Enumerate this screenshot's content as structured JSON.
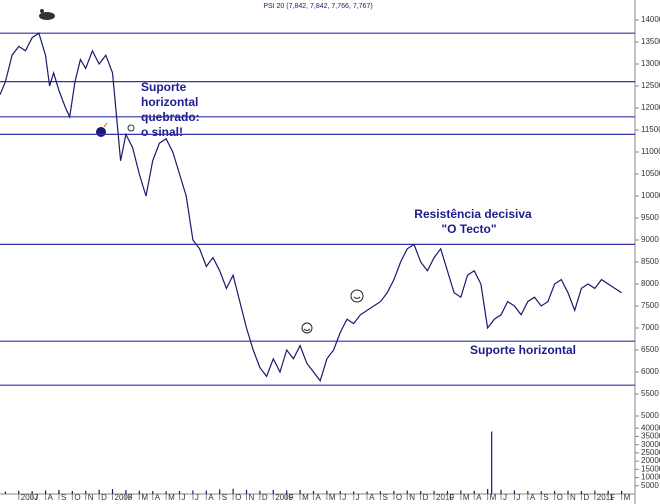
{
  "chart_data": [
    {
      "type": "line",
      "title": "PSI 20 (7,842, 7,842, 7,766, 7,767)",
      "annotations": [
        "Suporte",
        "horizontal",
        "quebrado:",
        "o sinal!",
        "Resistência decisiva",
        "\"O Tecto\"",
        "Suporte horizontal"
      ],
      "xlim": [
        3.6,
        51
      ],
      "ylim": [
        5000,
        14000
      ],
      "yticks": [
        5000,
        5500,
        6000,
        6500,
        7000,
        7500,
        8000,
        8500,
        9000,
        9500,
        10000,
        10500,
        11000,
        11500,
        12000,
        12500,
        13000,
        13500,
        14000
      ],
      "hlines": [
        13700,
        12600,
        11800,
        11400,
        8900,
        6700,
        5700
      ],
      "hline_color": "#3333aa",
      "series": [
        {
          "name": "PSI 20",
          "color": "#1a1a6e",
          "x": [
            3.6,
            4.0,
            4.5,
            5.0,
            5.5,
            6.0,
            6.5,
            7.0,
            7.3,
            7.6,
            8.0,
            8.5,
            8.8,
            9.2,
            9.6,
            10.0,
            10.5,
            11.0,
            11.5,
            12.0,
            12.3,
            12.6,
            13.0,
            13.5,
            14.0,
            14.5,
            15.0,
            15.5,
            16.0,
            16.5,
            17.0,
            17.5,
            18.0,
            18.5,
            19.0,
            19.5,
            20.0,
            20.5,
            21.0,
            21.5,
            22.0,
            22.5,
            23.0,
            23.5,
            24.0,
            24.5,
            25.0,
            25.5,
            26.0,
            26.5,
            27.0,
            27.5,
            28.0,
            28.5,
            29.0,
            29.5,
            30.0,
            30.5,
            31.0,
            32.0,
            32.5,
            33.0,
            33.5,
            34.0,
            34.5,
            35.0,
            35.5,
            36.0,
            36.5,
            37.0,
            37.5,
            38.0,
            38.5,
            39.0,
            39.5,
            40.0,
            40.5,
            41.0,
            41.5,
            42.0,
            42.5,
            43.0,
            43.5,
            44.0,
            44.5,
            45.0,
            45.5,
            46.0,
            46.5,
            47.0,
            47.5,
            48.0,
            48.5,
            49.0,
            49.5,
            50.0
          ],
          "values": [
            12300,
            12600,
            13200,
            13400,
            13300,
            13600,
            13700,
            13200,
            12500,
            12800,
            12400,
            12000,
            11800,
            12600,
            13100,
            12900,
            13300,
            13000,
            13200,
            12800,
            11800,
            10800,
            11400,
            11100,
            10500,
            10000,
            10800,
            11200,
            11300,
            11000,
            10500,
            10000,
            9000,
            8800,
            8400,
            8600,
            8300,
            7900,
            8200,
            7600,
            7000,
            6500,
            6100,
            5900,
            6300,
            6000,
            6500,
            6300,
            6600,
            6200,
            6000,
            5800,
            6300,
            6500,
            6900,
            7200,
            7100,
            7300,
            7400,
            7600,
            7800,
            8100,
            8500,
            8800,
            8900,
            8500,
            8300,
            8600,
            8800,
            8300,
            7800,
            7700,
            8200,
            8300,
            8000,
            7000,
            7200,
            7300,
            7600,
            7500,
            7300,
            7600,
            7700,
            7500,
            7600,
            8000,
            8100,
            7800,
            7400,
            7900,
            8000,
            7900,
            8100,
            8000,
            7900,
            7800
          ]
        }
      ]
    },
    {
      "type": "bar",
      "color": "#1a1a6e",
      "xlim": [
        3.6,
        51
      ],
      "ylim": [
        0,
        45000
      ],
      "yticks": [
        5000,
        10000,
        15000,
        20000,
        25000,
        30000,
        35000,
        40000
      ],
      "xticks": [
        {
          "value": 5,
          "label": "2007"
        },
        {
          "value": 6,
          "label": "J"
        },
        {
          "value": 7,
          "label": "A"
        },
        {
          "value": 8,
          "label": "S"
        },
        {
          "value": 9,
          "label": "O"
        },
        {
          "value": 10,
          "label": "N"
        },
        {
          "value": 11,
          "label": "D"
        },
        {
          "value": 12,
          "label": "2008"
        },
        {
          "value": 13,
          "label": "F"
        },
        {
          "value": 14,
          "label": "M"
        },
        {
          "value": 15,
          "label": "A"
        },
        {
          "value": 16,
          "label": "M"
        },
        {
          "value": 17,
          "label": "J"
        },
        {
          "value": 18,
          "label": "J"
        },
        {
          "value": 19,
          "label": "A"
        },
        {
          "value": 20,
          "label": "S"
        },
        {
          "value": 21,
          "label": "O"
        },
        {
          "value": 22,
          "label": "N"
        },
        {
          "value": 23,
          "label": "D"
        },
        {
          "value": 24,
          "label": "2009"
        },
        {
          "value": 25,
          "label": "F"
        },
        {
          "value": 26,
          "label": "M"
        },
        {
          "value": 27,
          "label": "A"
        },
        {
          "value": 28,
          "label": "M"
        },
        {
          "value": 29,
          "label": "J"
        },
        {
          "value": 30,
          "label": "J"
        },
        {
          "value": 31,
          "label": "A"
        },
        {
          "value": 32,
          "label": "S"
        },
        {
          "value": 33,
          "label": "O"
        },
        {
          "value": 34,
          "label": "N"
        },
        {
          "value": 35,
          "label": "D"
        },
        {
          "value": 36,
          "label": "2010"
        },
        {
          "value": 37,
          "label": "F"
        },
        {
          "value": 38,
          "label": "M"
        },
        {
          "value": 39,
          "label": "A"
        },
        {
          "value": 40,
          "label": "M"
        },
        {
          "value": 41,
          "label": "J"
        },
        {
          "value": 42,
          "label": "J"
        },
        {
          "value": 43,
          "label": "A"
        },
        {
          "value": 44,
          "label": "S"
        },
        {
          "value": 45,
          "label": "O"
        },
        {
          "value": 46,
          "label": "N"
        },
        {
          "value": 47,
          "label": "D"
        },
        {
          "value": 48,
          "label": "2011"
        },
        {
          "value": 49,
          "label": "F"
        },
        {
          "value": 50,
          "label": "M"
        }
      ],
      "x": [
        4,
        5,
        6,
        7,
        8,
        9,
        10,
        11,
        12,
        13,
        14,
        15,
        16,
        17,
        18,
        19,
        20,
        21,
        22,
        23,
        24,
        25,
        26,
        27,
        28,
        29,
        30,
        31,
        32,
        33,
        34,
        35,
        36,
        37,
        38,
        39,
        40,
        40.3,
        41,
        42,
        43,
        44,
        45,
        46,
        47,
        48,
        49,
        50
      ],
      "values": [
        1500,
        2000,
        1800,
        2200,
        2500,
        1800,
        2000,
        2600,
        3000,
        2400,
        2000,
        1800,
        1700,
        1900,
        2200,
        2100,
        2800,
        3200,
        2600,
        2000,
        2400,
        2200,
        2500,
        1900,
        2000,
        1800,
        1600,
        1500,
        1700,
        1900,
        2100,
        1800,
        2000,
        1900,
        2200,
        2000,
        3000,
        38000,
        2600,
        2200,
        1800,
        1700,
        1900,
        2000,
        1800,
        2100,
        2000,
        1900
      ]
    }
  ]
}
